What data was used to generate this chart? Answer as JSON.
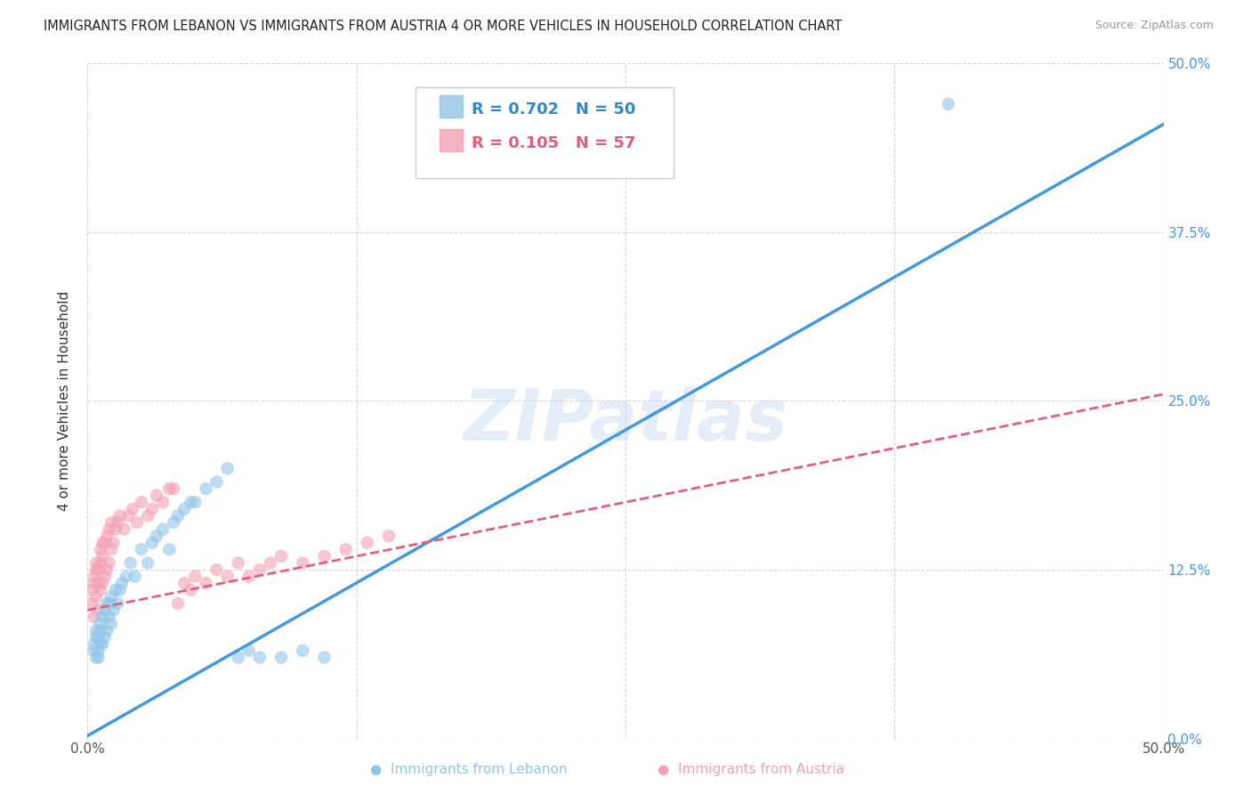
{
  "title": "IMMIGRANTS FROM LEBANON VS IMMIGRANTS FROM AUSTRIA 4 OR MORE VEHICLES IN HOUSEHOLD CORRELATION CHART",
  "source": "Source: ZipAtlas.com",
  "ylabel": "4 or more Vehicles in Household",
  "xlim": [
    0.0,
    0.5
  ],
  "ylim": [
    0.0,
    0.5
  ],
  "xticks": [
    0.0,
    0.125,
    0.25,
    0.375,
    0.5
  ],
  "yticks": [
    0.0,
    0.125,
    0.25,
    0.375,
    0.5
  ],
  "watermark": "ZIPatlas",
  "legend_R_lebanon": "0.702",
  "legend_N_lebanon": "50",
  "legend_R_austria": "0.105",
  "legend_N_austria": "57",
  "color_lebanon": "#92c5e8",
  "color_austria": "#f4a0b5",
  "trendline_color_lebanon": "#4499dd",
  "trendline_color_austria": "#e06080",
  "background_color": "#ffffff",
  "grid_color": "#cccccc",
  "lebanon_trendline": [
    0.0,
    0.002,
    0.5,
    0.455
  ],
  "austria_trendline": [
    0.0,
    0.095,
    0.5,
    0.255
  ],
  "lebanon_x": [
    0.003,
    0.003,
    0.004,
    0.004,
    0.004,
    0.005,
    0.005,
    0.005,
    0.006,
    0.006,
    0.006,
    0.007,
    0.007,
    0.008,
    0.008,
    0.009,
    0.009,
    0.01,
    0.01,
    0.011,
    0.011,
    0.012,
    0.013,
    0.014,
    0.015,
    0.016,
    0.018,
    0.02,
    0.022,
    0.025,
    0.028,
    0.03,
    0.032,
    0.035,
    0.038,
    0.04,
    0.042,
    0.045,
    0.048,
    0.05,
    0.055,
    0.06,
    0.065,
    0.07,
    0.075,
    0.08,
    0.09,
    0.1,
    0.11,
    0.4
  ],
  "lebanon_y": [
    0.065,
    0.07,
    0.06,
    0.075,
    0.08,
    0.06,
    0.065,
    0.075,
    0.07,
    0.08,
    0.085,
    0.07,
    0.09,
    0.075,
    0.095,
    0.08,
    0.1,
    0.09,
    0.1,
    0.085,
    0.105,
    0.095,
    0.11,
    0.1,
    0.11,
    0.115,
    0.12,
    0.13,
    0.12,
    0.14,
    0.13,
    0.145,
    0.15,
    0.155,
    0.14,
    0.16,
    0.165,
    0.17,
    0.175,
    0.175,
    0.185,
    0.19,
    0.2,
    0.06,
    0.065,
    0.06,
    0.06,
    0.065,
    0.06,
    0.47
  ],
  "austria_x": [
    0.002,
    0.002,
    0.003,
    0.003,
    0.003,
    0.004,
    0.004,
    0.004,
    0.005,
    0.005,
    0.005,
    0.006,
    0.006,
    0.006,
    0.007,
    0.007,
    0.007,
    0.008,
    0.008,
    0.009,
    0.009,
    0.01,
    0.01,
    0.011,
    0.011,
    0.012,
    0.013,
    0.014,
    0.015,
    0.017,
    0.019,
    0.021,
    0.023,
    0.025,
    0.028,
    0.03,
    0.032,
    0.035,
    0.038,
    0.04,
    0.042,
    0.045,
    0.048,
    0.05,
    0.055,
    0.06,
    0.065,
    0.07,
    0.075,
    0.08,
    0.085,
    0.09,
    0.1,
    0.11,
    0.12,
    0.13,
    0.14
  ],
  "austria_y": [
    0.1,
    0.11,
    0.09,
    0.115,
    0.12,
    0.105,
    0.125,
    0.13,
    0.115,
    0.095,
    0.125,
    0.11,
    0.13,
    0.14,
    0.115,
    0.135,
    0.145,
    0.12,
    0.145,
    0.125,
    0.15,
    0.13,
    0.155,
    0.14,
    0.16,
    0.145,
    0.155,
    0.16,
    0.165,
    0.155,
    0.165,
    0.17,
    0.16,
    0.175,
    0.165,
    0.17,
    0.18,
    0.175,
    0.185,
    0.185,
    0.1,
    0.115,
    0.11,
    0.12,
    0.115,
    0.125,
    0.12,
    0.13,
    0.12,
    0.125,
    0.13,
    0.135,
    0.13,
    0.135,
    0.14,
    0.145,
    0.15
  ]
}
